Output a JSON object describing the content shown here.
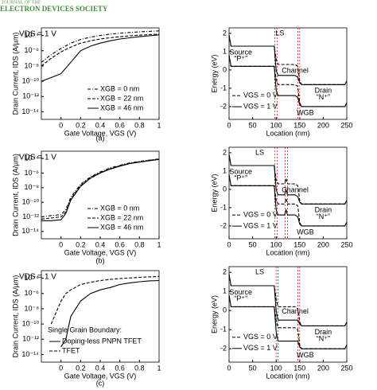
{
  "header": {
    "journal": "JOURNAL OF THE",
    "society": "ELECTRON DEVICES SOCIETY"
  },
  "captions": [
    "(a)",
    "(b)",
    "(c)"
  ],
  "chart_data": [
    {
      "type": "line",
      "log_y": true,
      "annotation": "VDS = 1 V",
      "xlabel": "Gate Voltage, VGS (V)",
      "ylabel": "Drain Current, IDS (A/µm)",
      "x": [
        -0.2,
        -0.1,
        0,
        0.1,
        0.2,
        0.3,
        0.4,
        0.5,
        0.6,
        0.7,
        0.8,
        0.9,
        1
      ],
      "xlim": [
        -0.2,
        1
      ],
      "xticks": [
        0,
        0.2,
        0.4,
        0.6,
        0.8,
        1
      ],
      "ylim": [
        1e-15,
        0.001
      ],
      "yticks": [
        {
          "value": 0.0001,
          "label": "10⁻⁴"
        },
        {
          "value": 1e-06,
          "label": "10⁻⁶"
        },
        {
          "value": 1e-08,
          "label": "10⁻⁸"
        },
        {
          "value": 1e-10,
          "label": "10⁻¹⁰"
        },
        {
          "value": 1e-12,
          "label": "10⁻¹²"
        },
        {
          "value": 1e-14,
          "label": "10⁻¹⁴"
        }
      ],
      "legend": "lower right",
      "series": [
        {
          "name": "XGB = 0 nm",
          "dash": "4 2 1 2",
          "color": "#000",
          "values": [
            3e-08,
            3e-07,
            2e-06,
            1e-05,
            3e-05,
            6e-05,
            0.0001,
            0.00015,
            0.0002,
            0.00025,
            0.0003,
            0.00035,
            0.0004
          ]
        },
        {
          "name": "XGB = 22 nm",
          "dash": "4 2",
          "color": "#000",
          "values": [
            1e-08,
            1e-07,
            7e-07,
            3e-06,
            1e-05,
            2e-05,
            3.5e-05,
            5e-05,
            7e-05,
            9e-05,
            0.00011,
            0.00013,
            0.00015
          ]
        },
        {
          "name": "XGB = 46 nm",
          "dash": "",
          "color": "#000",
          "values": [
            1e-10,
            3e-10,
            1e-09,
            3e-08,
            1e-06,
            4e-06,
            1e-05,
            2e-05,
            3.5e-05,
            5e-05,
            7e-05,
            9e-05,
            0.00012
          ]
        }
      ]
    },
    {
      "type": "band",
      "xlabel": "Location (nm)",
      "ylabel": "Energy (eV)",
      "x": [
        0,
        4,
        96,
        100,
        104,
        140,
        146,
        150,
        154,
        246,
        250
      ],
      "xlim": [
        0,
        250
      ],
      "xticks": [
        0,
        50,
        100,
        150,
        200,
        250
      ],
      "ylim": [
        -2.7,
        2.3
      ],
      "yticks": [
        2,
        1,
        0,
        -1,
        -2
      ],
      "boundaries": [
        97,
        102,
        146,
        150
      ],
      "annotations": [
        "LS",
        "Source",
        "“P⁺”",
        "Channel",
        "Drain",
        "“N⁺”",
        "WGB"
      ],
      "legend": [
        {
          "label": "VGS = 0 V",
          "dash": "4 2"
        },
        {
          "label": "VGS = 1 V",
          "dash": ""
        }
      ],
      "series": [
        {
          "dash": "4 2",
          "color": "#000",
          "values": [
            1.9,
            1.3,
            1.3,
            0.6,
            0.3,
            0.3,
            0.2,
            -0.6,
            -0.8,
            -0.8,
            -0.6
          ]
        },
        {
          "dash": "",
          "color": "#000",
          "values": [
            1.9,
            1.3,
            1.3,
            0.0,
            -0.3,
            -0.3,
            -0.4,
            -0.7,
            -0.8,
            -0.8,
            -0.6
          ]
        },
        {
          "dash": "4 2",
          "color": "#000",
          "values": [
            0.8,
            0.2,
            0.2,
            -0.5,
            -0.8,
            -0.8,
            -0.9,
            -1.8,
            -2.0,
            -2.0,
            -1.8
          ]
        },
        {
          "dash": "",
          "color": "#000",
          "values": [
            0.8,
            0.2,
            0.2,
            -1.1,
            -1.4,
            -1.4,
            -1.5,
            -1.9,
            -2.0,
            -2.0,
            -1.8
          ]
        }
      ]
    },
    {
      "type": "line",
      "log_y": true,
      "annotation": "VDS = 1 V",
      "xlabel": "Gate Voltage, VGS (V)",
      "ylabel": "Drain Current, IDS (A/µm)",
      "x": [
        -0.2,
        -0.1,
        0,
        0.05,
        0.1,
        0.2,
        0.3,
        0.4,
        0.5,
        0.6,
        0.7,
        0.8,
        0.9,
        1
      ],
      "xlim": [
        -0.2,
        1
      ],
      "xticks": [
        0,
        0.2,
        0.4,
        0.6,
        0.8,
        1
      ],
      "ylim": [
        1e-15,
        0.001
      ],
      "yticks": [
        {
          "value": 0.0001,
          "label": "10⁻⁴"
        },
        {
          "value": 1e-06,
          "label": "10⁻⁶"
        },
        {
          "value": 1e-08,
          "label": "10⁻⁸"
        },
        {
          "value": 1e-10,
          "label": "10⁻¹⁰"
        },
        {
          "value": 1e-12,
          "label": "10⁻¹²"
        },
        {
          "value": 1e-14,
          "label": "10⁻¹⁴"
        }
      ],
      "legend": "lower right",
      "series": [
        {
          "name": "XGB = 0 nm",
          "dash": "4 2 1 2",
          "color": "#000",
          "values": [
            1e-12,
            1.5e-12,
            2e-12,
            1e-11,
            5e-10,
            3e-08,
            3e-07,
            1.5e-06,
            5e-06,
            1.2e-05,
            2.5e-05,
            4e-05,
            6e-05,
            9e-05
          ]
        },
        {
          "name": "XGB = 22 nm",
          "dash": "4 2",
          "color": "#000",
          "values": [
            5e-13,
            7e-13,
            1e-12,
            5e-12,
            3e-10,
            2e-08,
            2.5e-07,
            1.2e-06,
            4e-06,
            1e-05,
            2.2e-05,
            3.5e-05,
            5.5e-05,
            8e-05
          ]
        },
        {
          "name": "XGB = 46 nm",
          "dash": "",
          "color": "#000",
          "values": [
            3e-13,
            3e-13,
            4e-13,
            3e-12,
            2e-10,
            1.5e-08,
            2e-07,
            1e-06,
            3.5e-06,
            9e-06,
            2e-05,
            3.2e-05,
            5e-05,
            7.5e-05
          ]
        }
      ]
    },
    {
      "type": "band",
      "xlabel": "Location (nm)",
      "ylabel": "Energy (eV)",
      "x": [
        0,
        4,
        96,
        100,
        104,
        118,
        121,
        124,
        140,
        146,
        150,
        154,
        246,
        250
      ],
      "xlim": [
        0,
        250
      ],
      "xticks": [
        0,
        50,
        100,
        150,
        200,
        250
      ],
      "ylim": [
        -2.7,
        2.3
      ],
      "yticks": [
        2,
        1,
        0,
        -1,
        -2
      ],
      "boundaries": [
        97,
        102,
        119,
        124
      ],
      "annotations": [
        "LS",
        "Source",
        "“P⁺”",
        "Channel",
        "Drain",
        "“N⁺”",
        "WGB"
      ],
      "legend": [
        {
          "label": "VGS = 0 V",
          "dash": "4 2"
        },
        {
          "label": "VGS = 1 V",
          "dash": ""
        }
      ],
      "series": [
        {
          "dash": "4 2",
          "color": "#000",
          "values": [
            1.9,
            1.3,
            1.3,
            0.5,
            0.3,
            0.3,
            0.6,
            0.3,
            0.3,
            0.2,
            -0.6,
            -0.8,
            -0.8,
            -0.6
          ]
        },
        {
          "dash": "",
          "color": "#000",
          "values": [
            1.9,
            1.3,
            1.3,
            0.0,
            -0.3,
            -0.3,
            0.0,
            -0.3,
            -0.3,
            -0.4,
            -0.7,
            -0.8,
            -0.8,
            -0.6
          ]
        },
        {
          "dash": "4 2",
          "color": "#000",
          "values": [
            0.8,
            0.2,
            0.2,
            -0.6,
            -0.8,
            -0.8,
            -0.5,
            -0.8,
            -0.8,
            -0.9,
            -1.8,
            -2.0,
            -2.0,
            -1.8
          ]
        },
        {
          "dash": "",
          "color": "#000",
          "values": [
            0.8,
            0.2,
            0.2,
            -1.1,
            -1.4,
            -1.4,
            -1.1,
            -1.4,
            -1.4,
            -1.5,
            -1.9,
            -2.0,
            -2.0,
            -1.8
          ]
        }
      ]
    },
    {
      "type": "line",
      "log_y": true,
      "annotation": "VDS = 1 V",
      "xlabel": "Gate Voltage, VGS (V)",
      "ylabel": "Drain Current, IDS (A/µm)",
      "x": [
        -0.2,
        -0.1,
        0,
        0.05,
        0.1,
        0.2,
        0.3,
        0.4,
        0.5,
        0.6,
        0.7,
        0.8,
        0.9,
        1
      ],
      "xlim": [
        -0.2,
        1
      ],
      "xticks": [
        0,
        0.2,
        0.4,
        0.6,
        0.8,
        1
      ],
      "ylim": [
        1e-15,
        0.001
      ],
      "yticks": [
        {
          "value": 0.0001,
          "label": "10⁻⁴"
        },
        {
          "value": 1e-06,
          "label": "10⁻⁶"
        },
        {
          "value": 1e-08,
          "label": "10⁻⁸"
        },
        {
          "value": 1e-10,
          "label": "10⁻¹⁰"
        },
        {
          "value": 1e-12,
          "label": "10⁻¹²"
        },
        {
          "value": 1e-14,
          "label": "10⁻¹⁴"
        }
      ],
      "legend": "lower right",
      "legend_title": "Single Grain Boundary:",
      "series": [
        {
          "name": "Doping-less PNPN TFET",
          "dash": "",
          "color": "#000",
          "values": [
            null,
            null,
            1e-13,
            1e-12,
            1e-09,
            1e-07,
            1e-06,
            3e-06,
            6e-06,
            1.5e-05,
            2.5e-05,
            3.5e-05,
            4.5e-05,
            5e-05
          ]
        },
        {
          "name": "TFET",
          "dash": "4 2",
          "color": "#000",
          "values": [
            null,
            1e-10,
            1e-07,
            1e-06,
            3e-06,
            1.5e-05,
            3e-05,
            5e-05,
            7e-05,
            9e-05,
            0.00011,
            0.00013,
            0.00015,
            0.00017
          ]
        }
      ]
    },
    {
      "type": "band",
      "xlabel": "Location (nm)",
      "ylabel": "Energy (eV)",
      "x": [
        0,
        4,
        96,
        100,
        104,
        140,
        146,
        150,
        154,
        246,
        250
      ],
      "xlim": [
        0,
        250
      ],
      "xticks": [
        0,
        50,
        100,
        150,
        200,
        250
      ],
      "ylim": [
        -2.7,
        2.3
      ],
      "yticks": [
        2,
        1,
        0,
        -1,
        -2
      ],
      "boundaries": [
        100,
        104,
        146,
        150
      ],
      "annotations": [
        "LS",
        "Source",
        "“P⁺”",
        "Channel",
        "Drain",
        "“N⁺”",
        "WGB"
      ],
      "legend": [
        {
          "label": "VGS = 0 V",
          "dash": "4 2"
        },
        {
          "label": "VGS = 1 V",
          "dash": ""
        }
      ],
      "series": [
        {
          "dash": "4 2",
          "color": "#000",
          "values": [
            1.9,
            1.3,
            1.3,
            0.6,
            0.2,
            0.2,
            0.1,
            -0.6,
            -0.8,
            -0.8,
            -0.6
          ]
        },
        {
          "dash": "",
          "color": "#000",
          "values": [
            1.9,
            1.3,
            1.3,
            0.0,
            -0.5,
            -0.5,
            -0.5,
            -0.7,
            -0.8,
            -0.8,
            -0.6
          ]
        },
        {
          "dash": "4 2",
          "color": "#000",
          "values": [
            0.8,
            0.2,
            0.2,
            -0.5,
            -0.9,
            -0.9,
            -1.0,
            -1.8,
            -2.0,
            -2.0,
            -1.8
          ]
        },
        {
          "dash": "",
          "color": "#000",
          "values": [
            0.8,
            0.2,
            0.2,
            -1.1,
            -1.6,
            -1.6,
            -1.6,
            -1.9,
            -2.0,
            -2.0,
            -1.8
          ]
        }
      ]
    }
  ]
}
